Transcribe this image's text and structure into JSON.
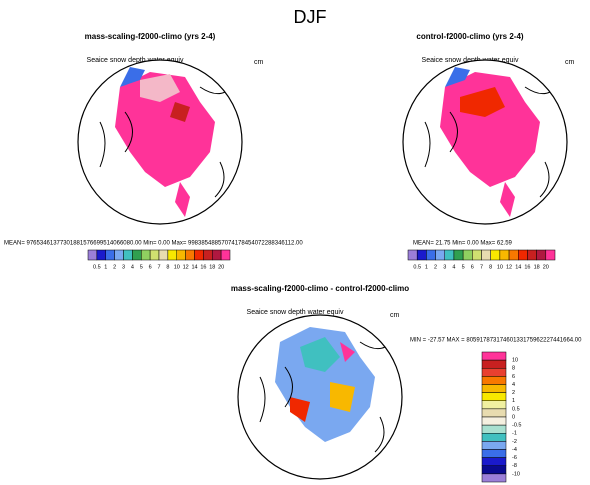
{
  "title": "DJF",
  "panels": [
    {
      "title": "mass-scaling-f2000-climo (yrs 2-4)",
      "subtitle": "Seaice snow depth water equiv",
      "units": "cm",
      "stats": "MEAN= 97653461377301881576699514066080.00  Min=   0.00  Max= 99838548857074178454072288346112.00"
    },
    {
      "title": "control-f2000-climo (yrs 2-4)",
      "subtitle": "Seaice snow depth water equiv",
      "units": "cm",
      "stats": "MEAN= 21.75  Min=   0.00  Max= 62.59"
    },
    {
      "title": "mass-scaling-f2000-climo - control-f2000-climo",
      "subtitle": "Seaice snow depth water equiv",
      "units": "cm",
      "stats": "MIN = -27.57  MAX = 80591787317460133175962227441664.00"
    }
  ],
  "colorbar": {
    "labels": [
      "0.5",
      "1",
      "2",
      "3",
      "4",
      "5",
      "6",
      "7",
      "8",
      "10",
      "12",
      "14",
      "16",
      "18",
      "20"
    ],
    "colors": [
      "#9b7fd8",
      "#1a1acc",
      "#3a6ee8",
      "#7aa8f0",
      "#40c0c0",
      "#30a050",
      "#90d060",
      "#d0e070",
      "#e8dcb0",
      "#f8e800",
      "#f8b800",
      "#f87800",
      "#f02800",
      "#c82020",
      "#b01840",
      "#ff3399"
    ]
  },
  "diffbar": {
    "labels": [
      "10",
      "8",
      "6",
      "4",
      "2",
      "1",
      "0.5",
      "0",
      "-0.5",
      "-1",
      "-2",
      "-4",
      "-6",
      "-8",
      "-10"
    ],
    "colors": [
      "#ff3399",
      "#c82020",
      "#e84030",
      "#f87800",
      "#f8b800",
      "#f8e800",
      "#f0f0a0",
      "#e8dcb0",
      "#f5f0e0",
      "#a8e0d0",
      "#40c0c0",
      "#7aa8f0",
      "#3a6ee8",
      "#1a1acc",
      "#0a0a90",
      "#9b7fd8"
    ]
  }
}
